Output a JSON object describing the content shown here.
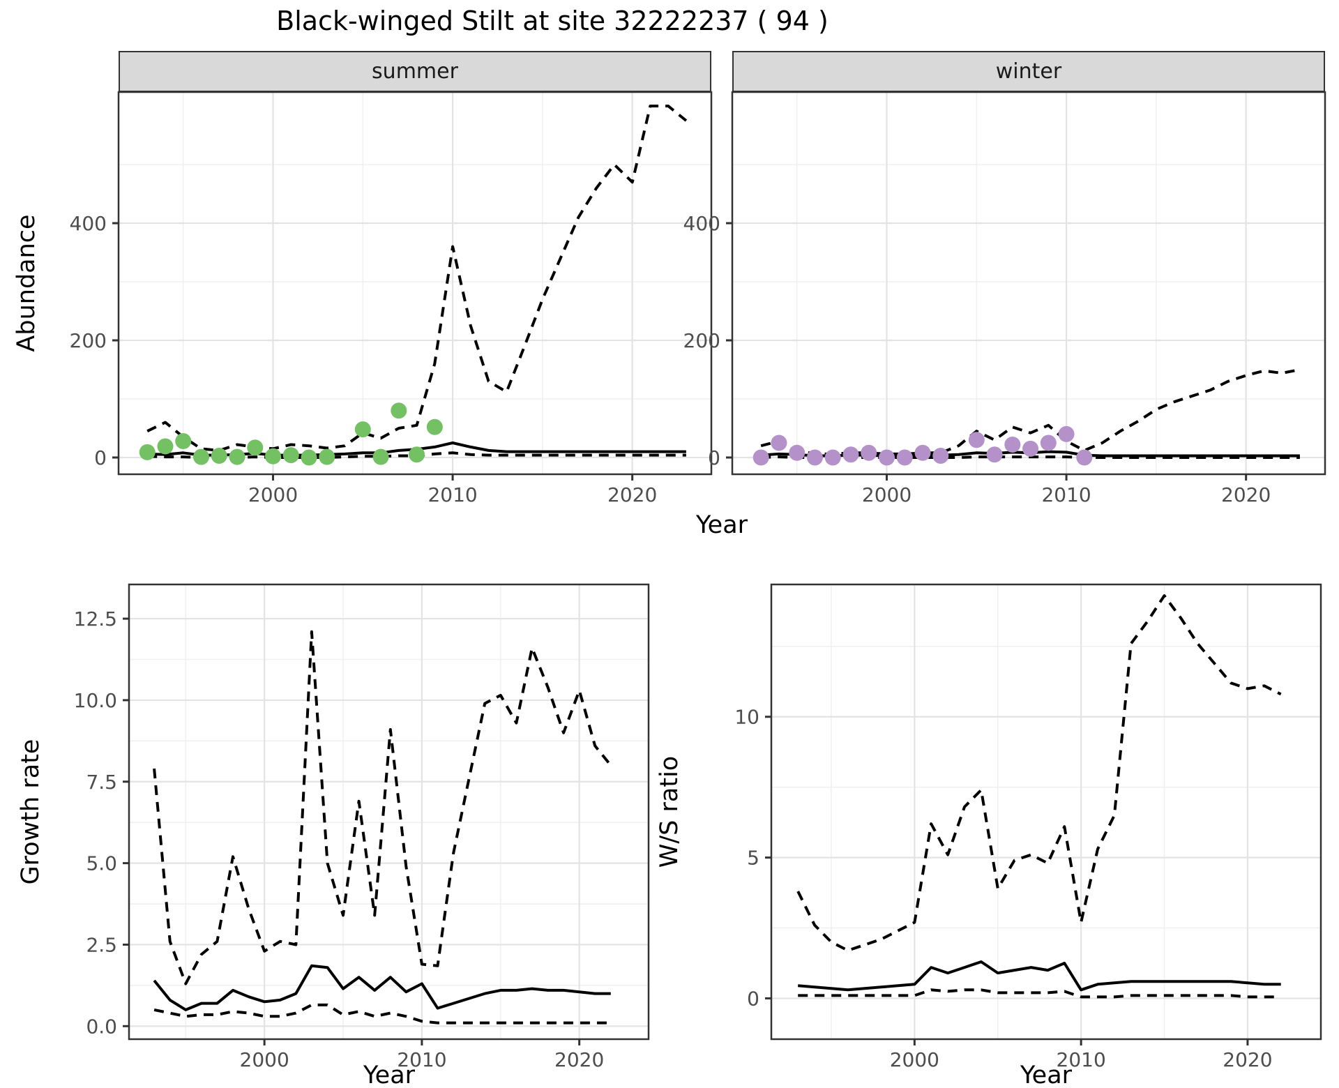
{
  "title": "Black-winged Stilt at site 32222237 ( 94 )",
  "colors": {
    "summer_points": "#74c164",
    "winter_points": "#b591c9",
    "line": "#000000",
    "panel_border": "#333333",
    "grid_major": "#e3e3e3",
    "grid_minor": "#f0f0f0",
    "strip_bg": "#d9d9d9",
    "tick_label": "#4d4d4d"
  },
  "top_row": {
    "ylabel": "Abundance",
    "xlabel": "Year"
  },
  "chart_data": [
    {
      "id": "abundance-summer",
      "type": "line",
      "facet_label": "summer",
      "ylabel": "Abundance",
      "xlabel": "Year",
      "xlim": [
        1991.4,
        2024.4
      ],
      "ylim": [
        -28.6,
        623.8
      ],
      "x_ticks": [
        2000,
        2010,
        2020
      ],
      "x_tick_labels": [
        "2000",
        "2010",
        "2020"
      ],
      "x_minor": [
        1995,
        2005,
        2015
      ],
      "y_ticks": [
        0,
        200,
        400
      ],
      "y_tick_labels": [
        "0",
        "200",
        "400"
      ],
      "y_minor": [
        100,
        300,
        500
      ],
      "grid": true,
      "legend": "none",
      "series": [
        {
          "name": "upper-ci",
          "style": "dashed",
          "x": [
            1993,
            1994,
            1995,
            1996,
            1997,
            1998,
            1999,
            2000,
            2001,
            2002,
            2003,
            2004,
            2005,
            2006,
            2007,
            2008,
            2009,
            2010,
            2011,
            2012,
            2013,
            2014,
            2015,
            2016,
            2017,
            2018,
            2019,
            2020,
            2021,
            2022,
            2023
          ],
          "y": [
            45,
            60,
            35,
            15,
            12,
            22,
            18,
            15,
            22,
            20,
            16,
            20,
            42,
            33,
            50,
            55,
            160,
            360,
            225,
            130,
            112,
            190,
            270,
            340,
            410,
            460,
            500,
            470,
            600,
            600,
            575
          ]
        },
        {
          "name": "median",
          "style": "solid",
          "x": [
            1993,
            1994,
            1995,
            1996,
            1997,
            1998,
            1999,
            2000,
            2001,
            2002,
            2003,
            2004,
            2005,
            2006,
            2007,
            2008,
            2009,
            2010,
            2011,
            2012,
            2013,
            2014,
            2015,
            2016,
            2017,
            2018,
            2019,
            2020,
            2021,
            2022,
            2023
          ],
          "y": [
            6,
            5,
            8,
            4,
            4,
            5,
            7,
            4,
            4,
            4,
            5,
            6,
            8,
            8,
            12,
            14,
            18,
            25,
            18,
            12,
            10,
            10,
            10,
            10,
            10,
            10,
            10,
            10,
            10,
            10,
            10
          ]
        },
        {
          "name": "lower-ci",
          "style": "dashed",
          "x": [
            1993,
            1994,
            1995,
            1996,
            1997,
            1998,
            1999,
            2000,
            2001,
            2002,
            2003,
            2004,
            2005,
            2006,
            2007,
            2008,
            2009,
            2010,
            2011,
            2012,
            2013,
            2014,
            2015,
            2016,
            2017,
            2018,
            2019,
            2020,
            2021,
            2022,
            2023
          ],
          "y": [
            2,
            1,
            1,
            0,
            0,
            0,
            1,
            0,
            0,
            0,
            0,
            1,
            2,
            2,
            3,
            3,
            6,
            8,
            5,
            4,
            4,
            4,
            4,
            4,
            4,
            4,
            4,
            4,
            4,
            4,
            4
          ]
        },
        {
          "name": "observations",
          "style": "points",
          "color": "#74c164",
          "x": [
            1993,
            1994,
            1995,
            1996,
            1997,
            1998,
            1999,
            2000,
            2001,
            2002,
            2003,
            2005,
            2006,
            2007,
            2008,
            2009
          ],
          "y": [
            9,
            19,
            28,
            1,
            3,
            1,
            17,
            2,
            4,
            0,
            1,
            48,
            1,
            80,
            5,
            52
          ]
        }
      ]
    },
    {
      "id": "abundance-winter",
      "type": "line",
      "facet_label": "winter",
      "ylabel": "Abundance",
      "xlabel": "Year",
      "xlim": [
        1991.4,
        2024.4
      ],
      "ylim": [
        -28.6,
        623.8
      ],
      "x_ticks": [
        2000,
        2010,
        2020
      ],
      "x_tick_labels": [
        "2000",
        "2010",
        "2020"
      ],
      "x_minor": [
        1995,
        2005,
        2015
      ],
      "y_ticks": [
        0,
        200,
        400
      ],
      "y_tick_labels": [
        "0",
        "200",
        "400"
      ],
      "y_minor": [
        100,
        300,
        500
      ],
      "grid": true,
      "legend": "none",
      "series": [
        {
          "name": "upper-ci",
          "style": "dashed",
          "x": [
            1993,
            1994,
            1995,
            1996,
            1997,
            1998,
            1999,
            2000,
            2001,
            2002,
            2003,
            2004,
            2005,
            2006,
            2007,
            2008,
            2009,
            2010,
            2011,
            2012,
            2013,
            2014,
            2015,
            2016,
            2017,
            2018,
            2019,
            2020,
            2021,
            2022,
            2023
          ],
          "y": [
            20,
            28,
            12,
            6,
            6,
            8,
            8,
            6,
            6,
            8,
            8,
            20,
            45,
            30,
            52,
            42,
            55,
            28,
            12,
            25,
            45,
            62,
            82,
            95,
            105,
            115,
            130,
            140,
            148,
            144,
            150
          ]
        },
        {
          "name": "median",
          "style": "solid",
          "x": [
            1993,
            1994,
            1995,
            1996,
            1997,
            1998,
            1999,
            2000,
            2001,
            2002,
            2003,
            2004,
            2005,
            2006,
            2007,
            2008,
            2009,
            2010,
            2011,
            2012,
            2013,
            2014,
            2015,
            2016,
            2017,
            2018,
            2019,
            2020,
            2021,
            2022,
            2023
          ],
          "y": [
            4,
            6,
            5,
            3,
            3,
            4,
            4,
            3,
            3,
            4,
            4,
            5,
            8,
            7,
            9,
            8,
            10,
            9,
            4,
            3,
            3,
            3,
            3,
            3,
            3,
            3,
            3,
            3,
            3,
            3,
            3
          ]
        },
        {
          "name": "lower-ci",
          "style": "dashed",
          "x": [
            1993,
            1994,
            1995,
            1996,
            1997,
            1998,
            1999,
            2000,
            2001,
            2002,
            2003,
            2004,
            2005,
            2006,
            2007,
            2008,
            2009,
            2010,
            2011,
            2012,
            2013,
            2014,
            2015,
            2016,
            2017,
            2018,
            2019,
            2020,
            2021,
            2022,
            2023
          ],
          "y": [
            0,
            1,
            0,
            0,
            0,
            0,
            0,
            0,
            0,
            0,
            0,
            0,
            1,
            1,
            1,
            1,
            1,
            1,
            0,
            0,
            0,
            0,
            0,
            0,
            0,
            0,
            0,
            0,
            0,
            0,
            0
          ]
        },
        {
          "name": "observations",
          "style": "points",
          "color": "#b591c9",
          "x": [
            1993,
            1994,
            1995,
            1996,
            1997,
            1998,
            1999,
            2000,
            2001,
            2002,
            2003,
            2005,
            2006,
            2007,
            2008,
            2009,
            2010,
            2011
          ],
          "y": [
            0,
            25,
            8,
            0,
            0,
            5,
            8,
            0,
            0,
            8,
            3,
            30,
            5,
            22,
            15,
            25,
            40,
            0
          ]
        }
      ]
    },
    {
      "id": "growth-rate",
      "type": "line",
      "facet_label": "",
      "ylabel": "Growth rate",
      "xlabel": "Year",
      "xlim": [
        1991.4,
        2024.4
      ],
      "ylim": [
        -0.4,
        13.55
      ],
      "x_ticks": [
        2000,
        2010,
        2020
      ],
      "x_tick_labels": [
        "2000",
        "2010",
        "2020"
      ],
      "x_minor": [
        1995,
        2005,
        2015
      ],
      "y_ticks": [
        0,
        2.5,
        5,
        7.5,
        10,
        12.5
      ],
      "y_tick_labels": [
        "0.0",
        "2.5",
        "5.0",
        "7.5",
        "10.0",
        "12.5"
      ],
      "y_minor": [
        1.25,
        3.75,
        6.25,
        8.75,
        11.25
      ],
      "grid": true,
      "legend": "none",
      "series": [
        {
          "name": "upper-ci",
          "style": "dashed",
          "x": [
            1993,
            1994,
            1995,
            1996,
            1997,
            1998,
            1999,
            2000,
            2001,
            2002,
            2003,
            2004,
            2005,
            2006,
            2007,
            2008,
            2009,
            2010,
            2011,
            2012,
            2013,
            2014,
            2015,
            2016,
            2017,
            2018,
            2019,
            2020,
            2021,
            2022
          ],
          "y": [
            7.9,
            2.6,
            1.3,
            2.2,
            2.6,
            5.2,
            3.6,
            2.3,
            2.6,
            2.5,
            12.1,
            5.0,
            3.4,
            6.9,
            3.4,
            9.1,
            4.9,
            1.9,
            1.85,
            5.3,
            7.6,
            9.9,
            10.15,
            9.3,
            11.6,
            10.4,
            9.0,
            10.3,
            8.6,
            8.0
          ]
        },
        {
          "name": "median",
          "style": "solid",
          "x": [
            1993,
            1994,
            1995,
            1996,
            1997,
            1998,
            1999,
            2000,
            2001,
            2002,
            2003,
            2004,
            2005,
            2006,
            2007,
            2008,
            2009,
            2010,
            2011,
            2012,
            2013,
            2014,
            2015,
            2016,
            2017,
            2018,
            2019,
            2020,
            2021,
            2022
          ],
          "y": [
            1.4,
            0.8,
            0.5,
            0.7,
            0.7,
            1.1,
            0.9,
            0.75,
            0.8,
            1.0,
            1.85,
            1.8,
            1.15,
            1.5,
            1.1,
            1.5,
            1.05,
            1.3,
            0.55,
            0.7,
            0.85,
            1.0,
            1.1,
            1.1,
            1.15,
            1.1,
            1.1,
            1.05,
            1.0,
            1.0
          ]
        },
        {
          "name": "lower-ci",
          "style": "dashed",
          "x": [
            1993,
            1994,
            1995,
            1996,
            1997,
            1998,
            1999,
            2000,
            2001,
            2002,
            2003,
            2004,
            2005,
            2006,
            2007,
            2008,
            2009,
            2010,
            2011,
            2012,
            2013,
            2014,
            2015,
            2016,
            2017,
            2018,
            2019,
            2020,
            2021,
            2022
          ],
          "y": [
            0.5,
            0.4,
            0.3,
            0.35,
            0.35,
            0.45,
            0.4,
            0.3,
            0.3,
            0.4,
            0.65,
            0.65,
            0.35,
            0.45,
            0.3,
            0.4,
            0.3,
            0.15,
            0.1,
            0.1,
            0.1,
            0.1,
            0.1,
            0.1,
            0.1,
            0.1,
            0.1,
            0.1,
            0.1,
            0.1
          ]
        }
      ]
    },
    {
      "id": "ws-ratio",
      "type": "line",
      "facet_label": "",
      "ylabel": "W/S ratio",
      "xlabel": "Year",
      "xlim": [
        1991.4,
        2024.4
      ],
      "ylim": [
        -1.45,
        14.7
      ],
      "x_ticks": [
        2000,
        2010,
        2020
      ],
      "x_tick_labels": [
        "2000",
        "2010",
        "2020"
      ],
      "x_minor": [
        1995,
        2005,
        2015
      ],
      "y_ticks": [
        0,
        5,
        10
      ],
      "y_tick_labels": [
        "0",
        "5",
        "10"
      ],
      "y_minor": [
        2.5,
        7.5,
        12.5
      ],
      "grid": true,
      "legend": "none",
      "series": [
        {
          "name": "upper-ci",
          "style": "dashed",
          "x": [
            1993,
            1994,
            1995,
            1996,
            1997,
            1998,
            1999,
            2000,
            2001,
            2002,
            2003,
            2004,
            2005,
            2006,
            2007,
            2008,
            2009,
            2010,
            2011,
            2012,
            2013,
            2014,
            2015,
            2016,
            2017,
            2018,
            2019,
            2020,
            2021,
            2022
          ],
          "y": [
            3.8,
            2.6,
            2.0,
            1.7,
            1.9,
            2.1,
            2.4,
            2.7,
            6.2,
            5.1,
            6.8,
            7.4,
            3.9,
            4.9,
            5.1,
            4.8,
            6.1,
            2.7,
            5.3,
            6.5,
            12.6,
            13.4,
            14.3,
            13.5,
            12.6,
            11.9,
            11.2,
            11.0,
            11.1,
            10.8
          ]
        },
        {
          "name": "median",
          "style": "solid",
          "x": [
            1993,
            1994,
            1995,
            1996,
            1997,
            1998,
            1999,
            2000,
            2001,
            2002,
            2003,
            2004,
            2005,
            2006,
            2007,
            2008,
            2009,
            2010,
            2011,
            2012,
            2013,
            2014,
            2015,
            2016,
            2017,
            2018,
            2019,
            2020,
            2021,
            2022
          ],
          "y": [
            0.45,
            0.4,
            0.35,
            0.3,
            0.35,
            0.4,
            0.45,
            0.5,
            1.1,
            0.9,
            1.1,
            1.3,
            0.9,
            1.0,
            1.1,
            1.0,
            1.25,
            0.3,
            0.5,
            0.55,
            0.6,
            0.6,
            0.6,
            0.6,
            0.6,
            0.6,
            0.6,
            0.55,
            0.5,
            0.5
          ]
        },
        {
          "name": "lower-ci",
          "style": "dashed",
          "x": [
            1993,
            1994,
            1995,
            1996,
            1997,
            1998,
            1999,
            2000,
            2001,
            2002,
            2003,
            2004,
            2005,
            2006,
            2007,
            2008,
            2009,
            2010,
            2011,
            2012,
            2013,
            2014,
            2015,
            2016,
            2017,
            2018,
            2019,
            2020,
            2021,
            2022
          ],
          "y": [
            0.1,
            0.1,
            0.1,
            0.1,
            0.1,
            0.1,
            0.1,
            0.1,
            0.3,
            0.25,
            0.3,
            0.3,
            0.2,
            0.2,
            0.2,
            0.2,
            0.25,
            0.05,
            0.05,
            0.05,
            0.1,
            0.1,
            0.1,
            0.1,
            0.1,
            0.1,
            0.1,
            0.05,
            0.05,
            0.05
          ]
        }
      ]
    }
  ]
}
